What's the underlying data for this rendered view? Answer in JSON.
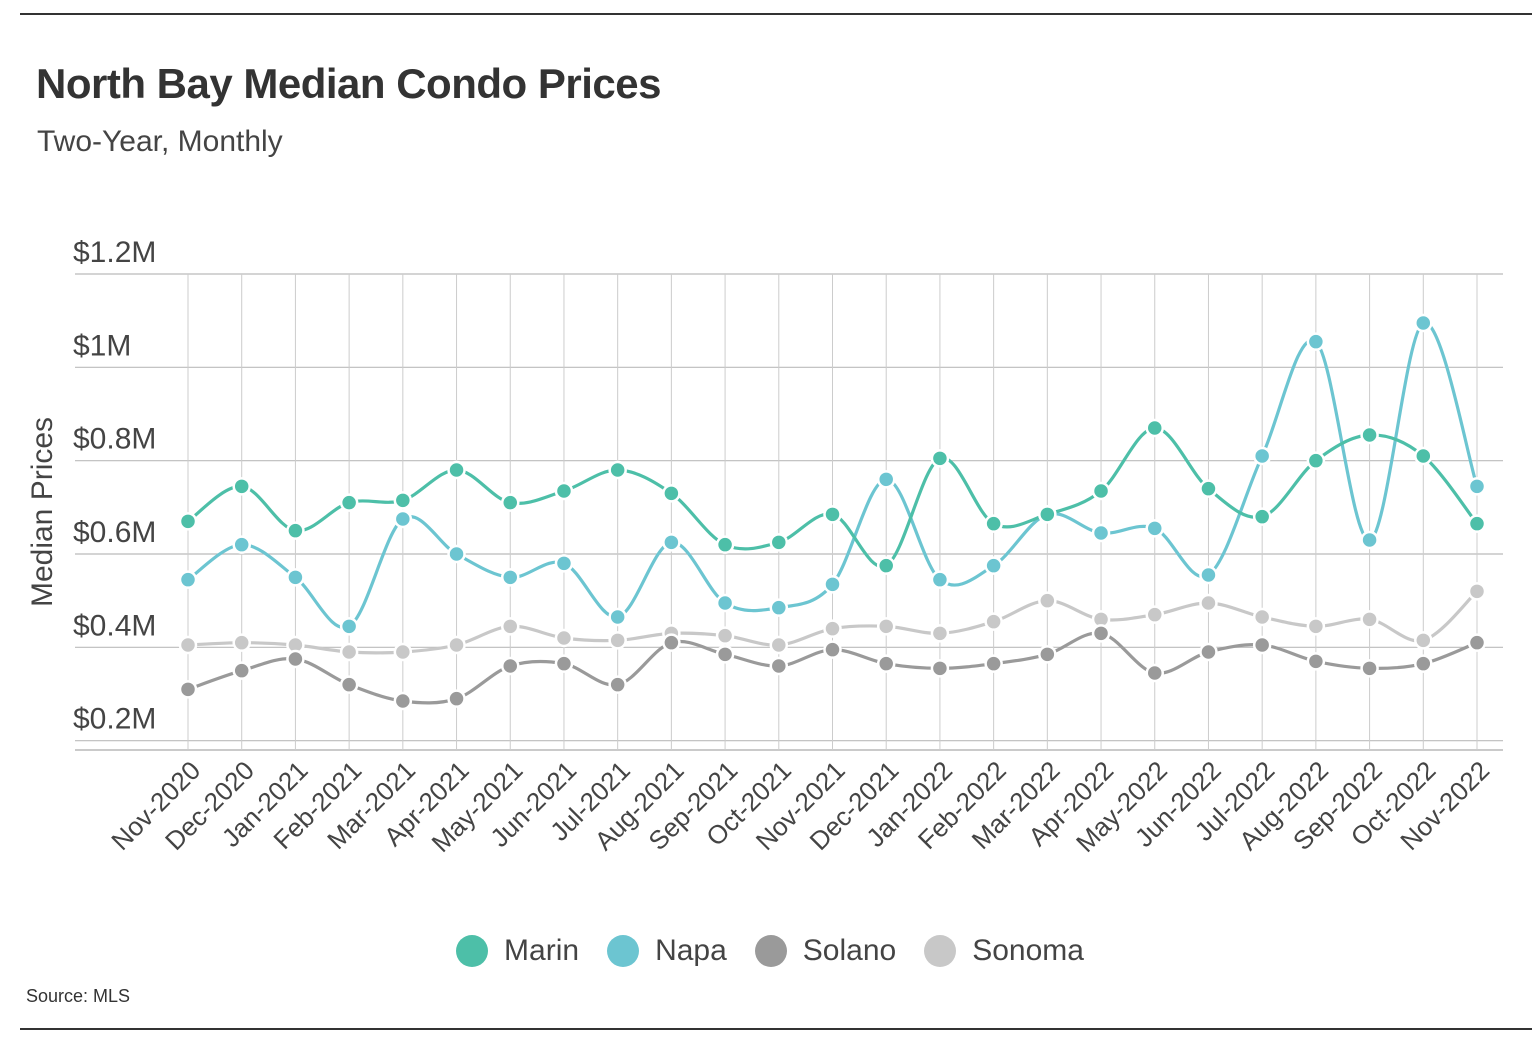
{
  "header": {
    "title": "North Bay Median Condo Prices",
    "subtitle": "Two-Year, Monthly"
  },
  "footer": {
    "source": "Source: MLS"
  },
  "chart_data": {
    "type": "line",
    "title": "North Bay Median Condo Prices",
    "subtitle": "Two-Year, Monthly",
    "xlabel": "",
    "ylabel": "Median Prices",
    "ylim": [
      180000,
      1200000
    ],
    "yticks": [
      200000,
      400000,
      600000,
      800000,
      1000000,
      1200000
    ],
    "ytick_labels": [
      "$0.2M",
      "$0.4M",
      "$0.6M",
      "$0.8M",
      "$1M",
      "$1.2M"
    ],
    "grid": true,
    "legend_position": "bottom-center",
    "categories": [
      "Nov-2020",
      "Dec-2020",
      "Jan-2021",
      "Feb-2021",
      "Mar-2021",
      "Apr-2021",
      "May-2021",
      "Jun-2021",
      "Jul-2021",
      "Aug-2021",
      "Sep-2021",
      "Oct-2021",
      "Nov-2021",
      "Dec-2021",
      "Jan-2022",
      "Feb-2022",
      "Mar-2022",
      "Apr-2022",
      "May-2022",
      "Jun-2022",
      "Jul-2022",
      "Aug-2022",
      "Sep-2022",
      "Oct-2022",
      "Nov-2022"
    ],
    "series": [
      {
        "name": "Marin",
        "color": "#4dbfa8",
        "values": [
          670000,
          745000,
          650000,
          710000,
          715000,
          780000,
          710000,
          735000,
          780000,
          730000,
          620000,
          625000,
          685000,
          575000,
          805000,
          665000,
          685000,
          735000,
          870000,
          740000,
          680000,
          800000,
          855000,
          810000,
          665000
        ]
      },
      {
        "name": "Napa",
        "color": "#6cc5d1",
        "values": [
          545000,
          620000,
          550000,
          445000,
          675000,
          600000,
          550000,
          580000,
          465000,
          625000,
          495000,
          485000,
          535000,
          760000,
          545000,
          575000,
          685000,
          645000,
          655000,
          555000,
          810000,
          1055000,
          630000,
          1095000,
          745000
        ]
      },
      {
        "name": "Solano",
        "color": "#9a9a9a",
        "values": [
          310000,
          350000,
          375000,
          320000,
          285000,
          290000,
          360000,
          365000,
          320000,
          410000,
          385000,
          360000,
          395000,
          365000,
          355000,
          365000,
          385000,
          430000,
          345000,
          390000,
          405000,
          370000,
          355000,
          365000,
          410000
        ]
      },
      {
        "name": "Sonoma",
        "color": "#c8c8c8",
        "values": [
          405000,
          410000,
          405000,
          390000,
          390000,
          405000,
          445000,
          420000,
          415000,
          430000,
          425000,
          405000,
          440000,
          445000,
          430000,
          455000,
          500000,
          460000,
          470000,
          495000,
          465000,
          445000,
          460000,
          415000,
          520000
        ]
      }
    ]
  }
}
